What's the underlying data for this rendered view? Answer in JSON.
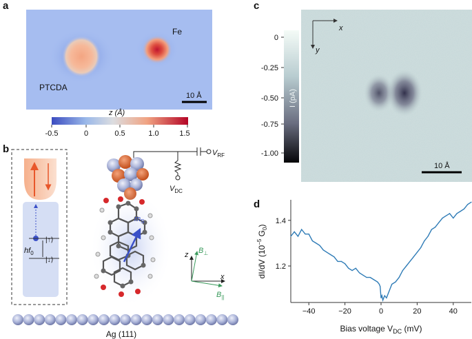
{
  "panel_labels": {
    "a": "a",
    "b": "b",
    "c": "c",
    "d": "d"
  },
  "panel_a": {
    "fe_label": "Fe",
    "ptcda_label": "PTCDA",
    "scale_bar": "10 Å",
    "colorbar": {
      "label": "z (Å)",
      "ticks": [
        "-0.5",
        "0",
        "0.5",
        "1.0",
        "1.5"
      ],
      "colors": [
        "#3b4cc0",
        "#9ab8e9",
        "#dcdde0",
        "#f0a382",
        "#b40426"
      ]
    }
  },
  "panel_b": {
    "up_state": "|↑⟩",
    "down_state": "|↓⟩",
    "hf_label": "hf",
    "hf_sub": "0",
    "ms_label": "m",
    "ms_sub": "S",
    "vrf_label": "V",
    "vrf_sub": "RF",
    "vdc_label": "V",
    "vdc_sub": "DC",
    "axis_z": "z",
    "axis_x": "x",
    "b_perp": "B",
    "b_perp_sub": "⊥",
    "b_par": "B",
    "b_par_sub": "||",
    "substrate": "Ag (111)"
  },
  "panel_c": {
    "axis_x": "x",
    "axis_y": "y",
    "colorbar_label": "I (pA)",
    "colorbar_ticks": [
      "0",
      "-0.25",
      "-0.50",
      "-0.75",
      "-1.00"
    ],
    "scale_bar": "10 Å"
  },
  "chart_data": {
    "type": "line",
    "title": "",
    "xlabel": "Bias voltage V",
    "xlabel_sub": "DC",
    "xlabel_unit": " (mV)",
    "ylabel": "dI/dV (10",
    "ylabel_exp": "−5",
    "ylabel_tail": " G",
    "ylabel_tail_sub": "0",
    "ylabel_close": ")",
    "xlim": [
      -50,
      50
    ],
    "ylim": [
      1.04,
      1.49
    ],
    "x_ticks": [
      -40,
      -20,
      0,
      20,
      40
    ],
    "y_ticks": [
      1.2,
      1.4
    ],
    "x_tick_labels": [
      "−40",
      "−20",
      "0",
      "20",
      "40"
    ],
    "y_tick_labels": [
      "1.2",
      "1.4"
    ],
    "color": "#2e7bb6",
    "grid": false,
    "series": [
      {
        "x": [
          -50,
          -48,
          -46,
          -44,
          -42,
          -40,
          -38,
          -36,
          -34,
          -32,
          -30,
          -28,
          -26,
          -24,
          -22,
          -20,
          -18,
          -16,
          -14,
          -12,
          -10,
          -8,
          -6,
          -4,
          -2,
          -1,
          -0.5,
          0,
          0.5,
          1,
          2,
          3,
          4,
          6,
          8,
          10,
          12,
          14,
          16,
          18,
          20,
          22,
          24,
          26,
          28,
          30,
          32,
          34,
          36,
          38,
          40,
          42,
          44,
          46,
          48,
          50
        ],
        "y": [
          1.33,
          1.35,
          1.33,
          1.36,
          1.34,
          1.34,
          1.31,
          1.3,
          1.29,
          1.27,
          1.26,
          1.25,
          1.24,
          1.22,
          1.22,
          1.21,
          1.19,
          1.18,
          1.19,
          1.17,
          1.16,
          1.15,
          1.15,
          1.14,
          1.13,
          1.12,
          1.11,
          1.06,
          1.07,
          1.05,
          1.07,
          1.06,
          1.08,
          1.12,
          1.13,
          1.15,
          1.18,
          1.2,
          1.22,
          1.24,
          1.26,
          1.28,
          1.31,
          1.33,
          1.36,
          1.37,
          1.39,
          1.41,
          1.42,
          1.43,
          1.41,
          1.43,
          1.44,
          1.45,
          1.47,
          1.48
        ]
      }
    ]
  }
}
